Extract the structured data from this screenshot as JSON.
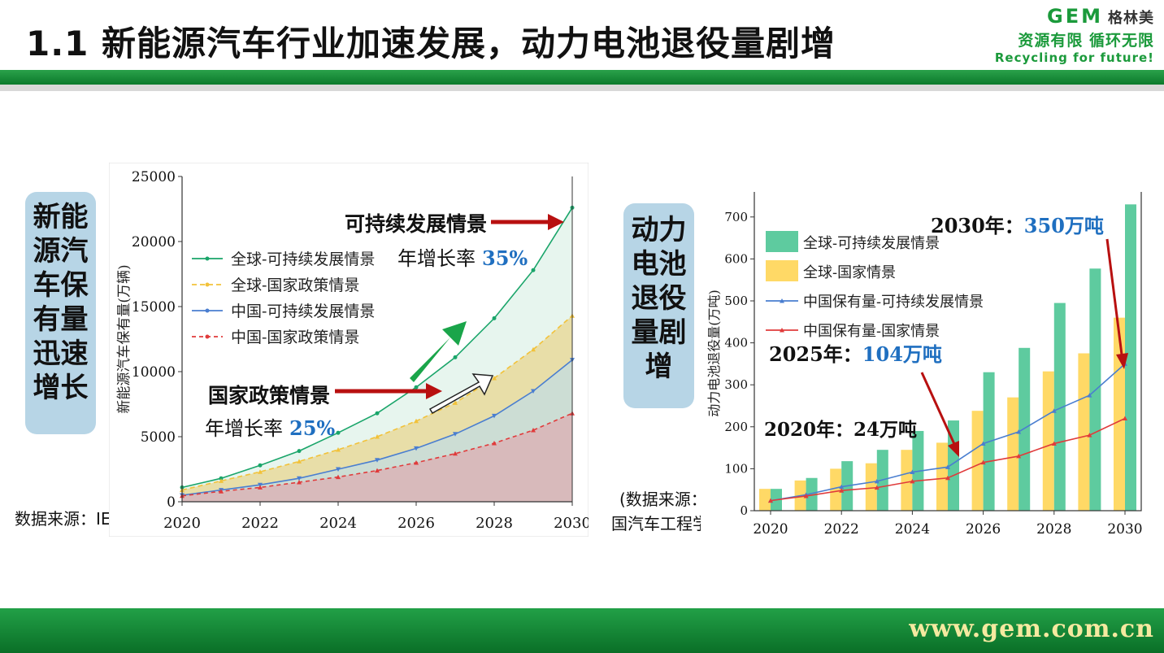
{
  "header": {
    "title": "1.1 新能源汽车行业加速发展，动力电池退役量剧增",
    "logo_brand": "GEM",
    "logo_cn": "格林美",
    "logo_slogan": "资源有限 循环无限",
    "logo_tagline": "Recycling for future!"
  },
  "footer": {
    "url": "www.gem.com.cn"
  },
  "left_label": "新能源汽车保有量迅速增长",
  "right_label": "动力电池退役量剧增",
  "left_source": "数据来源：IEA",
  "right_source_line1": "(数据来源：中",
  "right_source_line2": "国汽车工程学会)",
  "colors": {
    "green": "#1aa56a",
    "yellow": "#f2c23a",
    "blue": "#4a7ed0",
    "red": "#e03b3b",
    "bar_green": "#5ecb9f",
    "bar_yellow": "#ffd966",
    "arrow_red": "#b81010"
  },
  "chart_data": [
    {
      "type": "area",
      "title": "",
      "ylabel": "新能源汽车保有量(万辆)",
      "xlabel": "",
      "x": [
        2020,
        2021,
        2022,
        2023,
        2024,
        2025,
        2026,
        2027,
        2028,
        2029,
        2030
      ],
      "xticks": [
        "2020",
        "2022",
        "2024",
        "2026",
        "2028",
        "2030"
      ],
      "yticks": [
        "0",
        "5000",
        "10000",
        "15000",
        "20000",
        "25000"
      ],
      "ylim": [
        0,
        25000
      ],
      "legend_position": "top-left",
      "series": [
        {
          "name": "全球-可持续发展情景",
          "values": [
            1100,
            1800,
            2800,
            3900,
            5300,
            6800,
            8800,
            11100,
            14100,
            17800,
            22600
          ]
        },
        {
          "name": "全球-国家政策情景",
          "values": [
            900,
            1600,
            2300,
            3100,
            4000,
            5000,
            6200,
            7600,
            9500,
            11700,
            14300
          ]
        },
        {
          "name": "中国-可持续发展情景",
          "values": [
            500,
            900,
            1300,
            1800,
            2500,
            3200,
            4100,
            5200,
            6600,
            8500,
            10900
          ]
        },
        {
          "name": "中国-国家政策情景",
          "values": [
            450,
            800,
            1100,
            1500,
            1900,
            2400,
            3000,
            3700,
            4500,
            5500,
            6800
          ]
        }
      ],
      "annotations": {
        "sustainable": "可持续发展情景",
        "sustainable_rate_label": "年增长率",
        "sustainable_rate": "35%",
        "policy": "国家政策情景",
        "policy_rate_label": "年增长率",
        "policy_rate": "25%"
      }
    },
    {
      "type": "bar",
      "title": "",
      "ylabel": "动力电池退役量(万吨)",
      "xlabel": "",
      "x": [
        2020,
        2021,
        2022,
        2023,
        2024,
        2025,
        2026,
        2027,
        2028,
        2029,
        2030
      ],
      "xticks": [
        "2020",
        "2022",
        "2024",
        "2026",
        "2028",
        "2030"
      ],
      "yticks": [
        "0",
        "100",
        "200",
        "300",
        "400",
        "500",
        "600",
        "700"
      ],
      "ylim": [
        0,
        750
      ],
      "legend_position": "top-left",
      "series": [
        {
          "name": "全球-可持续发展情景",
          "kind": "bar",
          "values": [
            52,
            78,
            118,
            145,
            190,
            215,
            330,
            388,
            495,
            577,
            730
          ]
        },
        {
          "name": "全球-国家情景",
          "kind": "bar",
          "values": [
            52,
            72,
            100,
            113,
            145,
            162,
            238,
            270,
            332,
            375,
            460
          ]
        },
        {
          "name": "中国保有量-可持续发展情景",
          "kind": "line",
          "values": [
            24,
            38,
            57,
            70,
            92,
            104,
            160,
            188,
            238,
            275,
            350
          ]
        },
        {
          "name": "中国保有量-国家情景",
          "kind": "line",
          "values": [
            24,
            35,
            48,
            55,
            70,
            78,
            115,
            130,
            160,
            180,
            220
          ]
        }
      ],
      "annotations": {
        "y2030_label": "2030年：",
        "y2030_value": "350万吨",
        "y2025_label": "2025年：",
        "y2025_value": "104万吨",
        "y2020_label": "2020年：24万吨"
      }
    }
  ]
}
